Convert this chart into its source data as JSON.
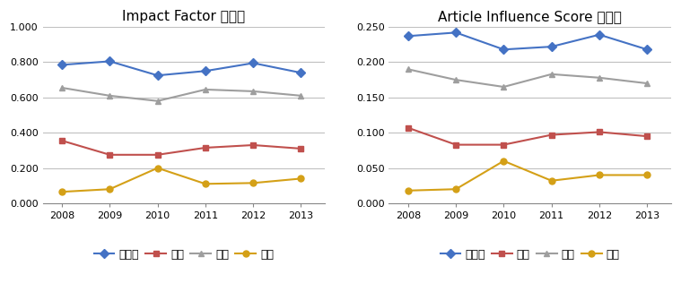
{
  "years": [
    2008,
    2009,
    2010,
    2011,
    2012,
    2013
  ],
  "chart1": {
    "title": "Impact Factor 생산성",
    "ylim": [
      0.0,
      1.0
    ],
    "yticks": [
      0.0,
      0.2,
      0.4,
      0.6,
      0.8,
      1.0
    ],
    "series": [
      {
        "label": "수도권",
        "values": [
          0.785,
          0.805,
          0.725,
          0.75,
          0.795,
          0.74
        ],
        "color": "#4472C4",
        "marker": "D"
      },
      {
        "label": "대전",
        "values": [
          0.355,
          0.275,
          0.275,
          0.315,
          0.33,
          0.31
        ],
        "color": "#C0504D",
        "marker": "s"
      },
      {
        "label": "지방",
        "values": [
          0.655,
          0.61,
          0.58,
          0.645,
          0.635,
          0.61
        ],
        "color": "#9E9E9E",
        "marker": "^"
      },
      {
        "label": "기타",
        "values": [
          0.065,
          0.08,
          0.2,
          0.11,
          0.115,
          0.14
        ],
        "color": "#D4A017",
        "marker": "o"
      }
    ]
  },
  "chart2": {
    "title": "Article Influence Score 생산성",
    "ylim": [
      0.0,
      0.25
    ],
    "yticks": [
      0.0,
      0.05,
      0.1,
      0.15,
      0.2,
      0.25
    ],
    "series": [
      {
        "label": "수도권",
        "values": [
          0.237,
          0.242,
          0.218,
          0.222,
          0.239,
          0.218
        ],
        "color": "#4472C4",
        "marker": "D"
      },
      {
        "label": "대전",
        "values": [
          0.107,
          0.083,
          0.083,
          0.097,
          0.101,
          0.095
        ],
        "color": "#C0504D",
        "marker": "s"
      },
      {
        "label": "지방",
        "values": [
          0.19,
          0.175,
          0.165,
          0.183,
          0.178,
          0.17
        ],
        "color": "#9E9E9E",
        "marker": "^"
      },
      {
        "label": "기타",
        "values": [
          0.018,
          0.02,
          0.06,
          0.032,
          0.04,
          0.04
        ],
        "color": "#D4A017",
        "marker": "o"
      }
    ]
  },
  "grid_color": "#C0C0C0",
  "line_width": 1.5,
  "marker_size": 5,
  "title_fontsize": 11,
  "tick_fontsize": 8,
  "legend_fontsize": 9,
  "background_color": "#FFFFFF"
}
